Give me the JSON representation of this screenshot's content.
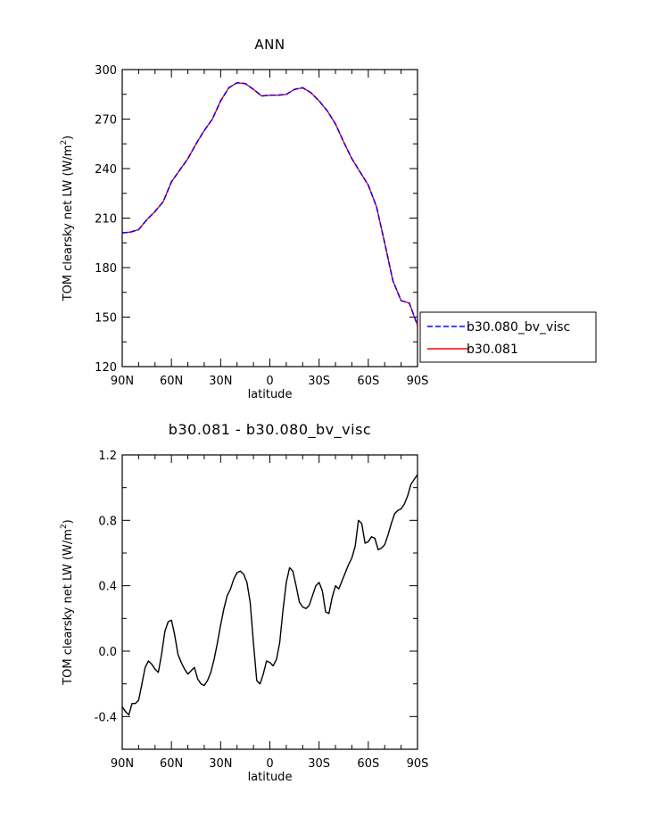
{
  "chart_data": [
    {
      "type": "line",
      "title": "ANN",
      "xlabel": "latitude",
      "ylabel_main": "TOM clearsky net LW (W/m",
      "ylabel_sup": "2",
      "ylabel_end": ")",
      "xlim": [
        90,
        -90
      ],
      "ylim": [
        120,
        300
      ],
      "xticks": [
        90,
        60,
        30,
        0,
        -30,
        -60,
        -90
      ],
      "xtick_labels": [
        "90N",
        "60N",
        "30N",
        "0",
        "30S",
        "60S",
        "90S"
      ],
      "yticks": [
        120,
        150,
        180,
        210,
        240,
        270,
        300
      ],
      "ytick_labels": [
        "120",
        "150",
        "180",
        "210",
        "240",
        "270",
        "300"
      ],
      "legend": {
        "placement": "right",
        "entries": [
          {
            "label": "b30.080_bv_visc",
            "color": "#0000ff",
            "style": "dashed"
          },
          {
            "label": "b30.081",
            "color": "#ff0000",
            "style": "solid"
          }
        ]
      },
      "x": [
        90,
        85,
        80,
        75,
        70,
        65,
        60,
        55,
        50,
        45,
        40,
        35,
        30,
        25,
        20,
        15,
        10,
        5,
        0,
        -5,
        -10,
        -15,
        -20,
        -25,
        -30,
        -35,
        -40,
        -45,
        -50,
        -55,
        -60,
        -65,
        -70,
        -75,
        -80,
        -85,
        -90
      ],
      "series": [
        {
          "name": "b30.080_bv_visc",
          "color": "#0000ff",
          "dash": true,
          "values": [
            201,
            201.5,
            203,
            209,
            214,
            220,
            232,
            239,
            246,
            255,
            263,
            270,
            281,
            289,
            292,
            291.5,
            288,
            284,
            284.5,
            284.5,
            285,
            288,
            289,
            286,
            281,
            275,
            267,
            256,
            246,
            238,
            230,
            217,
            195,
            172,
            160,
            158.5,
            145
          ]
        },
        {
          "name": "b30.081",
          "color": "#ff0000",
          "dash": false,
          "values": [
            201,
            201.5,
            203,
            209,
            214,
            220,
            232,
            239,
            246,
            255,
            263,
            270,
            281,
            289,
            292,
            291.5,
            288,
            284,
            284.5,
            284.5,
            285,
            288,
            289,
            286,
            281,
            275,
            267,
            256,
            246,
            238,
            230,
            217,
            195,
            172,
            160,
            158.5,
            145
          ]
        }
      ]
    },
    {
      "type": "line",
      "title": "b30.081 - b30.080_bv_visc",
      "xlabel": "latitude",
      "ylabel_main": "TOM clearsky net LW (W/m",
      "ylabel_sup": "2",
      "ylabel_end": ")",
      "xlim": [
        90,
        -90
      ],
      "ylim": [
        -0.6,
        1.2
      ],
      "xticks": [
        90,
        60,
        30,
        0,
        -30,
        -60,
        -90
      ],
      "xtick_labels": [
        "90N",
        "60N",
        "30N",
        "0",
        "30S",
        "60S",
        "90S"
      ],
      "yticks": [
        -0.4,
        0.0,
        0.4,
        0.8,
        1.2
      ],
      "ytick_labels": [
        "-0.4",
        "0.0",
        "0.4",
        "0.8",
        "1.2"
      ],
      "x": [
        90,
        88,
        86,
        84,
        82,
        80,
        78,
        76,
        74,
        72,
        70,
        68,
        66,
        64,
        62,
        60,
        58,
        56,
        54,
        52,
        50,
        48,
        46,
        44,
        42,
        40,
        38,
        36,
        34,
        32,
        30,
        28,
        26,
        24,
        22,
        20,
        18,
        16,
        14,
        12,
        10,
        8,
        6,
        4,
        2,
        0,
        -2,
        -4,
        -6,
        -8,
        -10,
        -12,
        -14,
        -16,
        -18,
        -20,
        -22,
        -24,
        -26,
        -28,
        -30,
        -32,
        -34,
        -36,
        -38,
        -40,
        -42,
        -44,
        -46,
        -48,
        -50,
        -52,
        -54,
        -56,
        -58,
        -60,
        -62,
        -64,
        -66,
        -68,
        -70,
        -72,
        -74,
        -76,
        -78,
        -80,
        -82,
        -84,
        -86,
        -88,
        -90
      ],
      "series": [
        {
          "name": "b30.081 - b30.080_bv_visc",
          "color": "#000000",
          "dash": false,
          "values": [
            -0.34,
            -0.37,
            -0.39,
            -0.32,
            -0.32,
            -0.3,
            -0.2,
            -0.1,
            -0.06,
            -0.08,
            -0.11,
            -0.13,
            -0.02,
            0.12,
            0.18,
            0.19,
            0.1,
            -0.02,
            -0.07,
            -0.11,
            -0.14,
            -0.12,
            -0.1,
            -0.17,
            -0.2,
            -0.21,
            -0.18,
            -0.13,
            -0.05,
            0.05,
            0.16,
            0.26,
            0.34,
            0.38,
            0.44,
            0.48,
            0.49,
            0.47,
            0.42,
            0.3,
            0.05,
            -0.18,
            -0.2,
            -0.14,
            -0.06,
            -0.07,
            -0.09,
            -0.05,
            0.05,
            0.25,
            0.42,
            0.51,
            0.49,
            0.4,
            0.3,
            0.27,
            0.26,
            0.28,
            0.34,
            0.4,
            0.42,
            0.37,
            0.24,
            0.23,
            0.33,
            0.4,
            0.38,
            0.43,
            0.48,
            0.53,
            0.57,
            0.64,
            0.8,
            0.78,
            0.66,
            0.67,
            0.7,
            0.69,
            0.62,
            0.63,
            0.65,
            0.71,
            0.78,
            0.84,
            0.86,
            0.87,
            0.9,
            0.95,
            1.02,
            1.05,
            1.08
          ]
        }
      ]
    }
  ]
}
